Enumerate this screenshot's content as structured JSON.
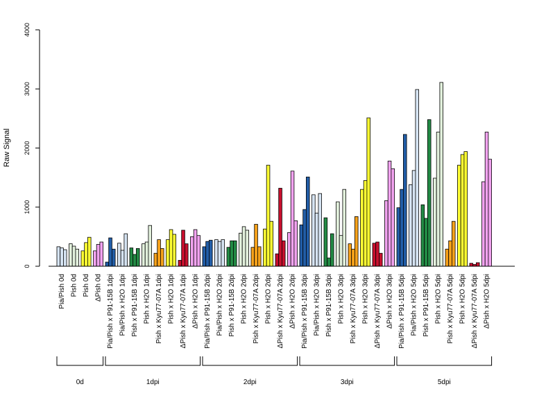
{
  "chart_data": {
    "type": "bar",
    "title": "",
    "xlabel": "",
    "ylabel": "Raw Signal",
    "ylim": [
      0,
      4000
    ],
    "yticks": [
      0,
      1000,
      2000,
      3000,
      4000
    ],
    "grid": false,
    "groups": [
      {
        "label": "0d",
        "color": "#d6e4f3",
        "bars": [
          {
            "label": "Pia/Pish 0d",
            "values": [
              330,
              310,
              280
            ],
            "color": "#d6e4f3"
          },
          {
            "label": "Pish 0d",
            "values": [
              380,
              340,
              290
            ],
            "color": "#e2f0dc"
          },
          {
            "label": "Pish 0d",
            "values": [
              260,
              400,
              490
            ],
            "color": "#ffff33"
          },
          {
            "label": "ΔPish 0d",
            "values": [
              260,
              370,
              410
            ],
            "color": "#f2a3f0"
          }
        ]
      },
      {
        "label": "1dpi",
        "bars": [
          {
            "label": "Pia/Pish x P91-15B 1dpi",
            "values": [
              70,
              480,
              290
            ],
            "color": "#225ea8"
          },
          {
            "label": "Pia/Pish x H2O 1dpi",
            "values": [
              390,
              270,
              550
            ],
            "color": "#d6e4f3"
          },
          {
            "label": "Pish x P91-15B 1dpi",
            "values": [
              310,
              200,
              300
            ],
            "color": "#238b45"
          },
          {
            "label": "Pish x H2O 1dpi",
            "values": [
              380,
              410,
              690
            ],
            "color": "#e2f0dc"
          },
          {
            "label": "Pish x Kyu77-07A 1dpi",
            "values": [
              220,
              450,
              300
            ],
            "color": "#f7a21b"
          },
          {
            "label": "Pish x H2O 1dpi",
            "values": [
              450,
              620,
              540
            ],
            "color": "#ffff33"
          },
          {
            "label": "ΔPish x Kyu77-07A 1dpi",
            "values": [
              100,
              610,
              380
            ],
            "color": "#c8102e"
          },
          {
            "label": "ΔPish x H2O 1dpi",
            "values": [
              500,
              620,
              520
            ],
            "color": "#f2a3f0"
          }
        ]
      },
      {
        "label": "2dpi",
        "bars": [
          {
            "label": "Pia/Pish x P91-15B 2dpi",
            "values": [
              330,
              420,
              440
            ],
            "color": "#225ea8"
          },
          {
            "label": "Pia/Pish x H2O 2dpi",
            "values": [
              450,
              420,
              450
            ],
            "color": "#d6e4f3"
          },
          {
            "label": "Pish x P91-15B 2dpi",
            "values": [
              320,
              430,
              430
            ],
            "color": "#238b45"
          },
          {
            "label": "Pish x H2O 2dpi",
            "values": [
              560,
              670,
              610
            ],
            "color": "#e2f0dc"
          },
          {
            "label": "Pish x Kyu77-07A 2dpi",
            "values": [
              320,
              710,
              330
            ],
            "color": "#f7a21b"
          },
          {
            "label": "Pish x H2O 2dpi",
            "values": [
              630,
              1710,
              760
            ],
            "color": "#ffff33"
          },
          {
            "label": "ΔPish x Kyu77-07A 2dpi",
            "values": [
              210,
              1320,
              430
            ],
            "color": "#c8102e"
          },
          {
            "label": "ΔPish x H2O 2dpi",
            "values": [
              570,
              1610,
              770
            ],
            "color": "#f2a3f0"
          }
        ]
      },
      {
        "label": "3dpi",
        "bars": [
          {
            "label": "Pia/Pish x P91-15B 3dpi",
            "values": [
              700,
              960,
              1510
            ],
            "color": "#225ea8"
          },
          {
            "label": "Pia/Pish x H2O 3dpi",
            "values": [
              1210,
              900,
              1230
            ],
            "color": "#d6e4f3"
          },
          {
            "label": "Pish x P91-15B 3dpi",
            "values": [
              820,
              140,
              550
            ],
            "color": "#238b45"
          },
          {
            "label": "Pish x H2O 3dpi",
            "values": [
              1090,
              520,
              1300
            ],
            "color": "#e2f0dc"
          },
          {
            "label": "Pish x Kyu77-07A 3dpi",
            "values": [
              380,
              290,
              840
            ],
            "color": "#f7a21b"
          },
          {
            "label": "Pish x H2O 3dpi",
            "values": [
              1300,
              1450,
              2510
            ],
            "color": "#ffff33"
          },
          {
            "label": "ΔPish x Kyu77-07A 3dpi",
            "values": [
              390,
              410,
              220
            ],
            "color": "#c8102e"
          },
          {
            "label": "ΔPish x H2O 3dpi",
            "values": [
              1110,
              1780,
              1650
            ],
            "color": "#f2a3f0"
          }
        ]
      },
      {
        "label": "5dpi",
        "bars": [
          {
            "label": "Pia/Pish x P91-15B 5dpi",
            "values": [
              990,
              1300,
              2230
            ],
            "color": "#225ea8"
          },
          {
            "label": "Pia/Pish x H2O 5dpi",
            "values": [
              1380,
              1620,
              2990
            ],
            "color": "#d6e4f3"
          },
          {
            "label": "Pish x P91-15B 5dpi",
            "values": [
              1040,
              810,
              2480
            ],
            "color": "#238b45"
          },
          {
            "label": "Pish x H2O 5dpi",
            "values": [
              1490,
              2270,
              3110
            ],
            "color": "#e2f0dc"
          },
          {
            "label": "Pish x Kyu77-07A 5dpi",
            "values": [
              290,
              430,
              760
            ],
            "color": "#f7a21b"
          },
          {
            "label": "Pish x H2O 5dpi",
            "values": [
              1710,
              1890,
              1940
            ],
            "color": "#ffff33"
          },
          {
            "label": "ΔPish x Kyu77-07A 5dpi",
            "values": [
              50,
              30,
              60
            ],
            "color": "#c8102e"
          },
          {
            "label": "ΔPish x H2O 5dpi",
            "values": [
              1430,
              2270,
              1810
            ],
            "color": "#f2a3f0"
          }
        ]
      }
    ]
  }
}
